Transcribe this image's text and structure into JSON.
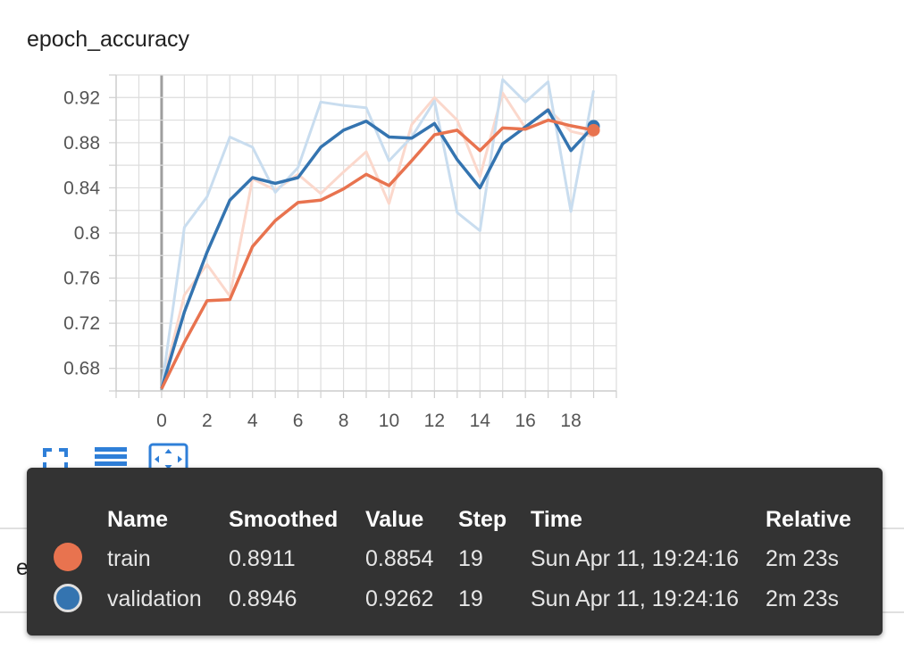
{
  "card": {
    "title": "epoch_accuracy"
  },
  "next_card": {
    "title": "epoch_loss"
  },
  "toolbar": {
    "icons": [
      "fullscreen-icon",
      "data-table-icon",
      "fit-domain-icon"
    ]
  },
  "colors": {
    "train": "#e8734f",
    "validation": "#3474b0",
    "train_light": "#fbd8cc",
    "validation_light": "#c9ddef"
  },
  "chart_data": {
    "type": "line",
    "title": "epoch_accuracy",
    "xlabel": "",
    "ylabel": "",
    "xlim": [
      -2,
      20
    ],
    "ylim": [
      0.66,
      0.94
    ],
    "xticks": [
      0,
      2,
      4,
      6,
      8,
      10,
      12,
      14,
      16,
      18
    ],
    "yticks": [
      0.68,
      0.72,
      0.76,
      0.8,
      0.84,
      0.88,
      0.92
    ],
    "grid": true,
    "series": [
      {
        "name": "train",
        "raw": [
          0.662,
          0.745,
          0.772,
          0.744,
          0.848,
          0.838,
          0.852,
          0.835,
          0.854,
          0.872,
          0.826,
          0.896,
          0.92,
          0.9,
          0.85,
          0.924,
          0.893,
          0.91,
          0.89,
          0.8854
        ],
        "smoothed": [
          0.662,
          0.703,
          0.74,
          0.741,
          0.788,
          0.811,
          0.827,
          0.829,
          0.839,
          0.852,
          0.842,
          0.864,
          0.887,
          0.891,
          0.873,
          0.893,
          0.892,
          0.9,
          0.895,
          0.8911
        ]
      },
      {
        "name": "validation",
        "raw": [
          0.662,
          0.805,
          0.832,
          0.885,
          0.876,
          0.836,
          0.858,
          0.916,
          0.913,
          0.911,
          0.864,
          0.885,
          0.917,
          0.818,
          0.802,
          0.936,
          0.916,
          0.934,
          0.819,
          0.9262
        ],
        "smoothed": [
          0.662,
          0.73,
          0.783,
          0.829,
          0.849,
          0.844,
          0.849,
          0.876,
          0.891,
          0.899,
          0.885,
          0.884,
          0.897,
          0.865,
          0.84,
          0.879,
          0.894,
          0.909,
          0.873,
          0.8946
        ]
      }
    ]
  },
  "tooltip": {
    "headers": [
      "Name",
      "Smoothed",
      "Value",
      "Step",
      "Time",
      "Relative"
    ],
    "rows": [
      {
        "name": "train",
        "smoothed": "0.8911",
        "value": "0.8854",
        "step": "19",
        "time": "Sun Apr 11, 19:24:16",
        "relative": "2m 23s",
        "color": "#e8734f"
      },
      {
        "name": "validation",
        "smoothed": "0.8946",
        "value": "0.9262",
        "step": "19",
        "time": "Sun Apr 11, 19:24:16",
        "relative": "2m 23s",
        "color": "#3474b0"
      }
    ]
  }
}
